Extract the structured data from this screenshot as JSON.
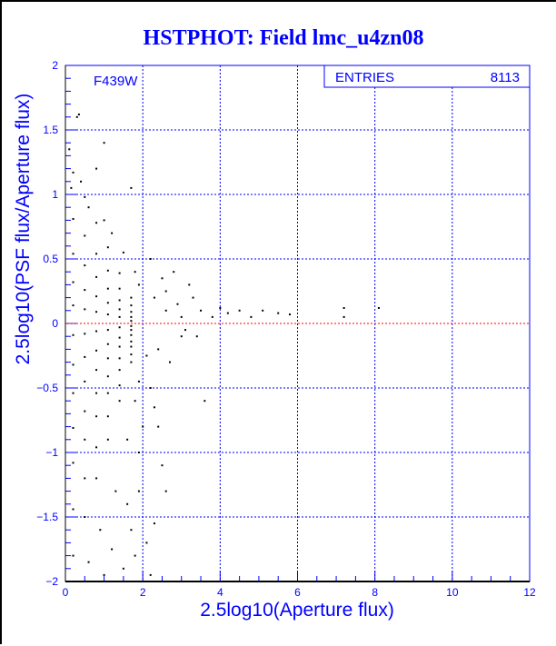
{
  "chart_data": {
    "type": "scatter",
    "title": "HSTPHOT: Field lmc_u4zn08",
    "xlabel": "2.5log10(Aperture flux)",
    "ylabel": "2.5log10(PSF flux/Aperture flux)",
    "xlim": [
      0,
      12
    ],
    "ylim": [
      -2,
      2
    ],
    "xticks": [
      "0",
      "2",
      "4",
      "6",
      "8",
      "10",
      "12"
    ],
    "yticks": [
      "-2",
      "-1.5",
      "-1",
      "-0.5",
      "0",
      "0.5",
      "1",
      "1.5",
      "2"
    ],
    "grid": true,
    "annotation": "F439W",
    "stats": {
      "label": "ENTRIES",
      "value": "8113"
    },
    "reference_line_y": 0,
    "colors": {
      "text": "#0000ff",
      "grid": "#0000ff",
      "points": "#000000",
      "reference": "#ff0000"
    },
    "points": [
      [
        0.2,
        1.17
      ],
      [
        0.5,
        0.98
      ],
      [
        0.8,
        0.78
      ],
      [
        1.1,
        0.59
      ],
      [
        1.4,
        0.39
      ],
      [
        1.7,
        0.2
      ],
      [
        0.2,
        0.81
      ],
      [
        0.5,
        0.68
      ],
      [
        0.8,
        0.54
      ],
      [
        1.1,
        0.41
      ],
      [
        1.4,
        0.27
      ],
      [
        1.7,
        0.14
      ],
      [
        0.2,
        0.54
      ],
      [
        0.5,
        0.45
      ],
      [
        0.8,
        0.36
      ],
      [
        1.1,
        0.27
      ],
      [
        1.4,
        0.18
      ],
      [
        1.7,
        0.09
      ],
      [
        0.2,
        0.32
      ],
      [
        0.5,
        0.26
      ],
      [
        0.8,
        0.21
      ],
      [
        1.1,
        0.16
      ],
      [
        1.4,
        0.11
      ],
      [
        1.7,
        0.05
      ],
      [
        0.2,
        0.14
      ],
      [
        0.5,
        0.11
      ],
      [
        0.8,
        0.09
      ],
      [
        1.1,
        0.07
      ],
      [
        1.4,
        0.05
      ],
      [
        1.7,
        0.02
      ],
      [
        0.2,
        -0.09
      ],
      [
        0.5,
        -0.08
      ],
      [
        0.8,
        -0.06
      ],
      [
        1.1,
        -0.05
      ],
      [
        1.4,
        -0.03
      ],
      [
        1.7,
        -0.02
      ],
      [
        0.2,
        -0.32
      ],
      [
        0.5,
        -0.26
      ],
      [
        0.8,
        -0.21
      ],
      [
        1.1,
        -0.16
      ],
      [
        1.4,
        -0.11
      ],
      [
        1.7,
        -0.05
      ],
      [
        0.2,
        -0.54
      ],
      [
        0.5,
        -0.45
      ],
      [
        0.8,
        -0.36
      ],
      [
        1.1,
        -0.27
      ],
      [
        1.4,
        -0.18
      ],
      [
        1.7,
        -0.09
      ],
      [
        0.2,
        -0.81
      ],
      [
        0.5,
        -0.68
      ],
      [
        0.8,
        -0.54
      ],
      [
        1.1,
        -0.41
      ],
      [
        1.4,
        -0.27
      ],
      [
        1.7,
        -0.14
      ],
      [
        0.2,
        -1.08
      ],
      [
        0.5,
        -0.9
      ],
      [
        0.8,
        -0.72
      ],
      [
        1.1,
        -0.54
      ],
      [
        1.4,
        -0.36
      ],
      [
        1.7,
        -0.18
      ],
      [
        0.2,
        -1.44
      ],
      [
        0.5,
        -1.2
      ],
      [
        0.8,
        -0.96
      ],
      [
        1.1,
        -0.72
      ],
      [
        1.4,
        -0.48
      ],
      [
        1.7,
        -0.24
      ],
      [
        0.2,
        -1.8
      ],
      [
        0.5,
        -1.5
      ],
      [
        0.8,
        -1.2
      ],
      [
        1.1,
        -0.9
      ],
      [
        1.4,
        -0.6
      ],
      [
        1.7,
        -0.3
      ],
      [
        1.5,
        -1.9
      ],
      [
        1.7,
        -1.6
      ],
      [
        1.9,
        -1.3
      ],
      [
        1.8,
        -1.8
      ],
      [
        2.2,
        -1.95
      ],
      [
        2.1,
        -1.7
      ],
      [
        1.6,
        -1.4
      ],
      [
        1.9,
        -1.0
      ],
      [
        2.0,
        -0.8
      ],
      [
        1.2,
        -1.75
      ],
      [
        1.0,
        -1.95
      ],
      [
        0.6,
        -1.85
      ],
      [
        0.9,
        -1.6
      ],
      [
        1.3,
        -1.3
      ],
      [
        1.6,
        -0.9
      ],
      [
        1.8,
        -0.6
      ],
      [
        1.9,
        -0.45
      ],
      [
        0.1,
        1.35
      ],
      [
        0.15,
        1.05
      ],
      [
        0.4,
        1.1
      ],
      [
        0.6,
        0.9
      ],
      [
        1.0,
        0.8
      ],
      [
        1.2,
        0.7
      ],
      [
        1.5,
        0.55
      ],
      [
        1.8,
        0.4
      ],
      [
        1.9,
        0.3
      ],
      [
        2.3,
        0.2
      ],
      [
        2.6,
        0.1
      ],
      [
        2.9,
        0.15
      ],
      [
        3.1,
        -0.05
      ],
      [
        3.3,
        0.2
      ],
      [
        3.5,
        0.1
      ],
      [
        3.8,
        0.05
      ],
      [
        4.0,
        0.12
      ],
      [
        4.2,
        0.08
      ],
      [
        4.5,
        0.1
      ],
      [
        4.8,
        0.05
      ],
      [
        5.1,
        0.1
      ],
      [
        5.5,
        0.08
      ],
      [
        5.8,
        0.07
      ],
      [
        7.2,
        0.12
      ],
      [
        7.2,
        0.05
      ],
      [
        8.1,
        0.12
      ],
      [
        2.4,
        -0.2
      ],
      [
        2.7,
        -0.3
      ],
      [
        3.0,
        -0.1
      ],
      [
        2.5,
        0.35
      ],
      [
        2.8,
        0.4
      ],
      [
        3.2,
        0.3
      ],
      [
        2.2,
        -0.5
      ],
      [
        2.4,
        -0.8
      ],
      [
        2.5,
        -1.1
      ],
      [
        2.6,
        -1.3
      ],
      [
        3.6,
        -0.6
      ],
      [
        1.0,
        1.4
      ],
      [
        0.3,
        1.6
      ],
      [
        0.35,
        1.62
      ],
      [
        1.7,
        1.05
      ],
      [
        0.8,
        1.2
      ],
      [
        2.3,
        -1.55
      ],
      [
        2.4,
        -2.0
      ],
      [
        2.2,
        0.5
      ],
      [
        2.6,
        0.25
      ],
      [
        3.0,
        0.05
      ],
      [
        3.4,
        -0.1
      ],
      [
        2.1,
        -0.25
      ],
      [
        2.3,
        -0.65
      ]
    ]
  }
}
